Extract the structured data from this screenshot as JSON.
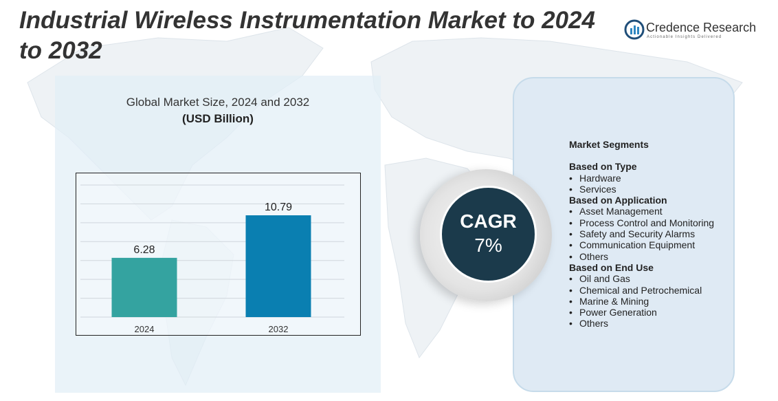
{
  "title": "Industrial Wireless Instrumentation Market to 2024 to 2032",
  "logo": {
    "name": "Credence Research",
    "tagline": "Actionable Insights Delivered"
  },
  "chart_data": {
    "type": "bar",
    "title": "Global Market Size,  2024 and 2032",
    "subtitle": "(USD Billion)",
    "categories": [
      "2024",
      "2032"
    ],
    "values": [
      6.28,
      10.79
    ],
    "value_labels": [
      "6.28",
      "10.79"
    ],
    "colors": [
      "#34a3a0",
      "#0a7fb1"
    ],
    "ylim": [
      0,
      14
    ],
    "grid": true,
    "legend": "none"
  },
  "cagr": {
    "label": "CAGR",
    "value": "7%"
  },
  "segments": {
    "heading": "Market Segments",
    "groups": [
      {
        "title": "Based on Type",
        "items": [
          "Hardware",
          "Services"
        ]
      },
      {
        "title": "Based on Application",
        "items": [
          "Asset Management",
          "Process Control and Monitoring",
          "Safety and Security Alarms",
          "Communication Equipment",
          "Others"
        ]
      },
      {
        "title": "Based on End Use",
        "items": [
          "Oil and Gas",
          "Chemical and Petrochemical",
          "Marine & Mining",
          "Power Generation",
          "Others"
        ]
      }
    ]
  },
  "colors": {
    "panel_bg": "#e2eef7",
    "cagr_circle": "#1b3a4b",
    "bar_2024": "#34a3a0",
    "bar_2032": "#0a7fb1"
  }
}
